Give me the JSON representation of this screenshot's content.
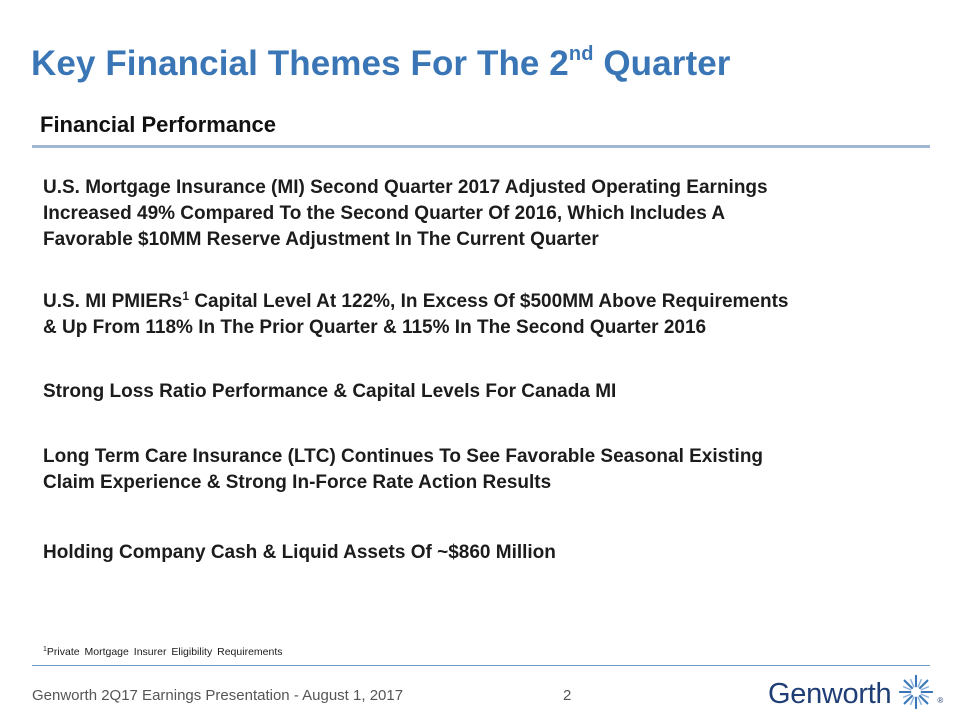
{
  "slide": {
    "title_main": "Key Financial Themes For The 2",
    "title_sup": "nd",
    "title_end": " Quarter",
    "section_heading": "Financial Performance"
  },
  "bullets": [
    {
      "lines": [
        "U.S. Mortgage Insurance (MI) Second Quarter 2017 Adjusted Operating Earnings",
        "Increased 49% Compared To the Second Quarter Of 2016, Which Includes A",
        "Favorable $10MM Reserve Adjustment In The Current Quarter"
      ]
    },
    {
      "line1_pre": "U.S. MI PMIERs",
      "line1_sup": "1",
      "line1_post": " Capital Level At 122%, In Excess Of $500MM Above Requirements",
      "line2": "& Up From 118% In The Prior Quarter & 115% In The Second Quarter 2016"
    },
    {
      "lines": [
        "Strong Loss Ratio Performance & Capital Levels For Canada MI"
      ]
    },
    {
      "lines": [
        "Long Term Care Insurance (LTC) Continues To See Favorable Seasonal Existing",
        "Claim Experience & Strong In-Force Rate Action Results"
      ]
    },
    {
      "lines": [
        "Holding Company Cash & Liquid Assets Of ~$860 Million"
      ]
    }
  ],
  "footnote": {
    "marker": "1",
    "text": "Private Mortgage Insurer Eligibility Requirements"
  },
  "footer": {
    "text": "Genworth 2Q17 Earnings Presentation - August 1, 2017",
    "page_number": "2",
    "logo_text": "Genworth",
    "logo_registered": "®",
    "logo_icon": "genworth-star-icon",
    "brand_color": "#3a76b5",
    "logo_color": "#1f3e75"
  }
}
